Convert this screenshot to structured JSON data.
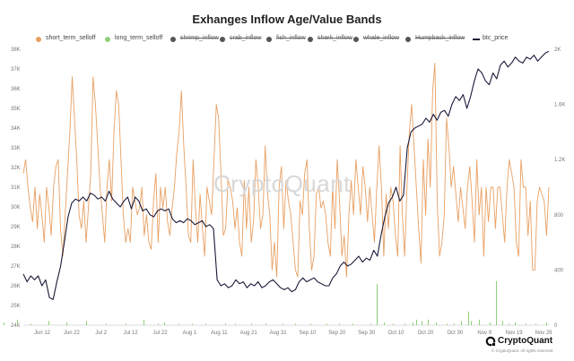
{
  "chart_data": {
    "type": "line",
    "title": "Exhanges Inflow Age/Value Bands",
    "watermark": "CryptoQuant",
    "legend_placement": "top",
    "grid": false,
    "x_ticks": [
      "Jun 12",
      "Jun 22",
      "Jul 2",
      "Jul 12",
      "Jul 22",
      "Aug 1",
      "Aug 11",
      "Aug 21",
      "Aug 31",
      "Sep 10",
      "Sep 20",
      "Sep 30",
      "Oct 10",
      "Oct 20",
      "Oct 30",
      "Nov 9",
      "Nov 19",
      "Nov 29"
    ],
    "y_left_ticks": [
      "24K",
      "25K",
      "26K",
      "27K",
      "28K",
      "29K",
      "30K",
      "31K",
      "32K",
      "33K",
      "34K",
      "35K",
      "36K",
      "37K",
      "38K"
    ],
    "y_left_range": [
      24000,
      38000
    ],
    "y_right_ticks": [
      "0",
      "400",
      "800",
      "1.2K",
      "1.6K",
      "2K"
    ],
    "y_right_range": [
      0,
      2000
    ],
    "series": [
      {
        "name": "short_term_selloff",
        "color": "#e8a063",
        "axis": "right",
        "visible": true,
        "values": [
          1100,
          1200,
          1000,
          850,
          750,
          1000,
          700,
          950,
          800,
          600,
          1000,
          850,
          650,
          1000,
          1150,
          1200,
          700,
          500,
          800,
          1100,
          1400,
          1800,
          1500,
          1200,
          800,
          700,
          900,
          600,
          850,
          1100,
          1800,
          1600,
          1300,
          1000,
          800,
          600,
          1000,
          1200,
          900,
          1400,
          1700,
          1600,
          1200,
          800,
          600,
          700,
          600,
          1000,
          900,
          800,
          850,
          1000,
          650,
          800,
          600,
          550,
          900,
          1100,
          600,
          1000,
          850,
          1000,
          750,
          650,
          850,
          1000,
          1250,
          1400,
          1700,
          1300,
          1000,
          650,
          600,
          1200,
          850,
          600,
          950,
          700,
          500,
          1000,
          900,
          800,
          1200,
          1600,
          1500,
          1100,
          650,
          700,
          1050,
          1000,
          900,
          700,
          850,
          600,
          500,
          1050,
          700,
          1000,
          600,
          750,
          1200,
          1000,
          700,
          800,
          1300,
          950,
          800,
          400,
          600,
          350,
          1000,
          1150,
          700,
          1050,
          900,
          800,
          600,
          400,
          350,
          900,
          800,
          1100,
          1200,
          700,
          400,
          500,
          950,
          1000,
          850,
          900,
          800,
          600,
          500,
          1000,
          700,
          1200,
          900,
          500,
          650,
          350,
          800,
          1050,
          800,
          1200,
          1000,
          800,
          1150,
          1000,
          750,
          1000,
          800,
          600,
          1000,
          1300,
          1000,
          500,
          950,
          700,
          1000,
          900,
          650,
          500,
          1300,
          800,
          500,
          1000,
          1400,
          1600,
          1300,
          1000,
          700,
          450,
          1200,
          800,
          1350,
          1000,
          1700,
          1900,
          900,
          500,
          600,
          800,
          1500,
          1300,
          1000,
          1150,
          950,
          750,
          1000,
          850,
          700,
          1000,
          1150,
          900,
          600,
          1200,
          800,
          1000,
          500,
          1000,
          750,
          1000,
          1000,
          700,
          1000,
          1000,
          800,
          600,
          1000,
          1200,
          1100,
          1000,
          600,
          500,
          1200,
          1000,
          1000,
          650,
          900,
          400,
          400,
          900,
          1000,
          950,
          900,
          650,
          1000
        ]
      },
      {
        "name": "long_term_selloff",
        "color": "#8fd07a",
        "axis": "right",
        "visible": true,
        "values": [
          5,
          5,
          40,
          5,
          5,
          5,
          5,
          5,
          5,
          5,
          5,
          5,
          5,
          5,
          5,
          5,
          20,
          5,
          5,
          5,
          5,
          30,
          5,
          5,
          5,
          5,
          25,
          5,
          5,
          5,
          5,
          5,
          5,
          5,
          5,
          5,
          5,
          5,
          5,
          5,
          5,
          5,
          5,
          5,
          5,
          5,
          5,
          5,
          5,
          5,
          5,
          5,
          5,
          5,
          5,
          5,
          5,
          5,
          5,
          5,
          5,
          5,
          5,
          5,
          5,
          5,
          5,
          5,
          5,
          5,
          5,
          5,
          5,
          5,
          5,
          5,
          5,
          5,
          5,
          5,
          5,
          5,
          5,
          5,
          5,
          5,
          5,
          5,
          5,
          5,
          5,
          5,
          5,
          5,
          5,
          5,
          5,
          5,
          5,
          5,
          5,
          5,
          5,
          5,
          5,
          5,
          5,
          5,
          5,
          5,
          5,
          5,
          5,
          5,
          5,
          5,
          5,
          5,
          5,
          5,
          5,
          5,
          5,
          5,
          5,
          5,
          5,
          5,
          5,
          5,
          5,
          5,
          5,
          5,
          5,
          5,
          5,
          5,
          5,
          5,
          5,
          5,
          5,
          5,
          5,
          5,
          5,
          5,
          5,
          5,
          5,
          5,
          5,
          5,
          5,
          5,
          5,
          5,
          5,
          5,
          5,
          5,
          5,
          5,
          5,
          5,
          5,
          5,
          5,
          5,
          5,
          5,
          5,
          5,
          5,
          5,
          5,
          5,
          5,
          5,
          5,
          5,
          5,
          5,
          5,
          5,
          5,
          5,
          5,
          5,
          5,
          5,
          5,
          5,
          5,
          5,
          5,
          5,
          5,
          5,
          5,
          5,
          5,
          5,
          5,
          5,
          5,
          5,
          5,
          5,
          5,
          5,
          5,
          5,
          5,
          5,
          5,
          5,
          5,
          5,
          5,
          5,
          5,
          5,
          5,
          5,
          5,
          5,
          5,
          5,
          5,
          5,
          5,
          5,
          5,
          5,
          5,
          5,
          5,
          5,
          5,
          5,
          5,
          5,
          5,
          5,
          5,
          5,
          5,
          5,
          5,
          5,
          5,
          5,
          5,
          5,
          5,
          5,
          5,
          5,
          5,
          5,
          5,
          5,
          5,
          5,
          5,
          5,
          5,
          5,
          5,
          5,
          5,
          5,
          5,
          5,
          5
        ]
      },
      {
        "name": "shrimp_inflow",
        "color": "#555555",
        "visible": false
      },
      {
        "name": "crab_inflow",
        "color": "#555555",
        "visible": false
      },
      {
        "name": "fish_inflow",
        "color": "#555555",
        "visible": false
      },
      {
        "name": "shark_inflow",
        "color": "#555555",
        "visible": false
      },
      {
        "name": "whale_inflow",
        "color": "#555555",
        "visible": false
      },
      {
        "name": "Humpback_inflow",
        "color": "#555555",
        "visible": false
      },
      {
        "name": "btc_price",
        "color": "#1a1a3a",
        "axis": "left",
        "visible": true,
        "values": [
          26600,
          26200,
          26500,
          26300,
          26500,
          26000,
          26300,
          25400,
          25300,
          26200,
          27000,
          28200,
          29500,
          30200,
          30400,
          30300,
          30500,
          30300,
          30700,
          30600,
          30400,
          30500,
          30300,
          30800,
          30400,
          30200,
          30000,
          30300,
          30500,
          29900,
          30500,
          30300,
          29800,
          29900,
          29600,
          29500,
          29800,
          29900,
          29800,
          29900,
          29400,
          29200,
          29300,
          29200,
          29400,
          29300,
          29100,
          29200,
          29300,
          29000,
          29100,
          28900,
          26300,
          26000,
          26100,
          25900,
          26000,
          26300,
          26100,
          26200,
          25900,
          26100,
          26000,
          26200,
          25900,
          26000,
          26200,
          26300,
          26100,
          25900,
          25800,
          25900,
          25700,
          25800,
          26200,
          26400,
          26200,
          26300,
          26400,
          26200,
          26100,
          26000,
          26000,
          26400,
          26600,
          27000,
          27200,
          27000,
          27100,
          27300,
          27500,
          27200,
          27400,
          27300,
          27800,
          27500,
          28600,
          29500,
          30200,
          30500,
          31000,
          30300,
          30600,
          33000,
          33800,
          34000,
          34100,
          34200,
          34500,
          34300,
          34700,
          34400,
          34800,
          34900,
          34600,
          35200,
          35600,
          35400,
          35700,
          35000,
          35600,
          36400,
          37000,
          36800,
          36400,
          36200,
          36800,
          36500,
          37200,
          37400,
          37100,
          37300,
          37600,
          37400,
          37300,
          37600,
          37500,
          37700,
          37400,
          37600,
          37800,
          37900
        ]
      }
    ],
    "long_term_x": [
      4,
      19,
      34,
      54,
      74,
      96,
      118,
      140,
      160,
      176,
      183,
      199,
      214,
      229,
      251,
      262,
      280,
      296,
      315,
      329,
      346,
      364,
      378,
      393,
      413,
      420,
      428,
      438,
      451,
      460,
      464,
      470,
      477,
      486,
      498,
      506,
      514,
      522,
      525,
      534,
      546,
      553,
      560,
      567,
      574,
      586,
      597,
      609
    ],
    "long_term_vals": [
      20,
      40,
      10,
      30,
      20,
      30,
      10,
      10,
      40,
      10,
      20,
      10,
      10,
      10,
      10,
      10,
      10,
      10,
      10,
      10,
      10,
      10,
      10,
      10,
      10,
      300,
      20,
      10,
      10,
      20,
      40,
      30,
      40,
      20,
      10,
      10,
      30,
      100,
      30,
      40,
      20,
      320,
      30,
      10,
      20,
      10,
      10,
      20
    ]
  },
  "brand": {
    "name": "CryptoQuant",
    "copyright": "© CryptoQuant. All rights reserved"
  }
}
